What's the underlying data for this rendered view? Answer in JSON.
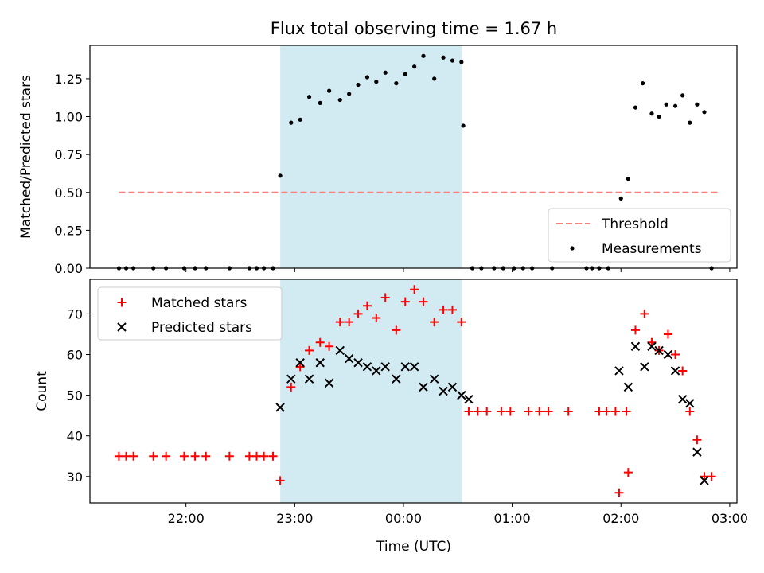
{
  "title": "Flux total observing time = 1.67 h",
  "colors": {
    "shade": "#add8e6",
    "threshold": "#ff7f7f",
    "measurements": "#000000",
    "matched": "#ff0000",
    "predicted": "#000000"
  },
  "x_ticks": [
    {
      "t": 0,
      "label": "22:00"
    },
    {
      "t": 60,
      "label": "23:00"
    },
    {
      "t": 120,
      "label": "00:00"
    },
    {
      "t": 180,
      "label": "01:00"
    },
    {
      "t": 240,
      "label": "02:00"
    },
    {
      "t": 300,
      "label": "03:00"
    }
  ],
  "xlabel": "Time (UTC)",
  "chart_data": [
    {
      "type": "scatter",
      "ylabel": "Matched/Predicted stars",
      "xlim": [
        -53,
        304
      ],
      "ylim": [
        0,
        1.47
      ],
      "yticks": [
        "0.00",
        "0.25",
        "0.50",
        "0.75",
        "1.00",
        "1.25"
      ],
      "shaded_span": [
        52,
        152
      ],
      "legend_position": "lower right",
      "series": [
        {
          "name": "Threshold",
          "style": "dashed-line",
          "points": [
            [
              -37,
              0.5
            ],
            [
              295,
              0.5
            ]
          ]
        },
        {
          "name": "Measurements",
          "style": "dot",
          "points": [
            [
              -37,
              0
            ],
            [
              -33,
              0
            ],
            [
              -29,
              0
            ],
            [
              -18,
              0
            ],
            [
              -11,
              0
            ],
            [
              -1,
              0
            ],
            [
              5,
              0
            ],
            [
              11,
              0
            ],
            [
              24,
              0
            ],
            [
              35,
              0
            ],
            [
              39,
              0
            ],
            [
              43,
              0
            ],
            [
              48,
              0
            ],
            [
              52,
              0.61
            ],
            [
              58,
              0.96
            ],
            [
              63,
              0.98
            ],
            [
              68,
              1.13
            ],
            [
              74,
              1.09
            ],
            [
              79,
              1.17
            ],
            [
              85,
              1.11
            ],
            [
              90,
              1.15
            ],
            [
              95,
              1.21
            ],
            [
              100,
              1.26
            ],
            [
              105,
              1.23
            ],
            [
              110,
              1.29
            ],
            [
              116,
              1.22
            ],
            [
              121,
              1.28
            ],
            [
              126,
              1.33
            ],
            [
              131,
              1.4
            ],
            [
              137,
              1.25
            ],
            [
              142,
              1.39
            ],
            [
              147,
              1.37
            ],
            [
              152,
              1.36
            ],
            [
              153,
              0.94
            ],
            [
              158,
              0
            ],
            [
              163,
              0
            ],
            [
              170,
              0
            ],
            [
              175,
              0
            ],
            [
              181,
              0
            ],
            [
              186,
              0
            ],
            [
              191,
              0
            ],
            [
              202,
              0
            ],
            [
              221,
              0
            ],
            [
              224,
              0
            ],
            [
              228,
              0
            ],
            [
              233,
              0
            ],
            [
              240,
              0.46
            ],
            [
              244,
              0.59
            ],
            [
              248,
              1.06
            ],
            [
              252,
              1.22
            ],
            [
              257,
              1.02
            ],
            [
              261,
              1.0
            ],
            [
              265,
              1.08
            ],
            [
              270,
              1.07
            ],
            [
              274,
              1.14
            ],
            [
              278,
              0.96
            ],
            [
              282,
              1.08
            ],
            [
              286,
              1.03
            ],
            [
              290,
              0
            ]
          ]
        }
      ]
    },
    {
      "type": "scatter",
      "ylabel": "Count",
      "xlim": [
        -53,
        304
      ],
      "ylim": [
        23.5,
        78.5
      ],
      "yticks": [
        "30",
        "40",
        "50",
        "60",
        "70"
      ],
      "shaded_span": [
        52,
        152
      ],
      "legend_position": "upper left",
      "series": [
        {
          "name": "Matched stars",
          "marker": "plus",
          "points": [
            [
              -37,
              35
            ],
            [
              -33,
              35
            ],
            [
              -29,
              35
            ],
            [
              -18,
              35
            ],
            [
              -11,
              35
            ],
            [
              -1,
              35
            ],
            [
              5,
              35
            ],
            [
              11,
              35
            ],
            [
              24,
              35
            ],
            [
              35,
              35
            ],
            [
              39,
              35
            ],
            [
              43,
              35
            ],
            [
              48,
              35
            ],
            [
              52,
              29
            ],
            [
              58,
              52
            ],
            [
              63,
              57
            ],
            [
              68,
              61
            ],
            [
              74,
              63
            ],
            [
              79,
              62
            ],
            [
              85,
              68
            ],
            [
              90,
              68
            ],
            [
              95,
              70
            ],
            [
              100,
              72
            ],
            [
              105,
              69
            ],
            [
              110,
              74
            ],
            [
              116,
              66
            ],
            [
              121,
              73
            ],
            [
              126,
              76
            ],
            [
              131,
              73
            ],
            [
              137,
              68
            ],
            [
              142,
              71
            ],
            [
              147,
              71
            ],
            [
              152,
              68
            ],
            [
              156,
              46
            ],
            [
              161,
              46
            ],
            [
              166,
              46
            ],
            [
              174,
              46
            ],
            [
              179,
              46
            ],
            [
              189,
              46
            ],
            [
              195,
              46
            ],
            [
              200,
              46
            ],
            [
              211,
              46
            ],
            [
              228,
              46
            ],
            [
              232,
              46
            ],
            [
              237,
              46
            ],
            [
              243,
              46
            ],
            [
              239,
              26
            ],
            [
              244,
              31
            ],
            [
              248,
              66
            ],
            [
              253,
              70
            ],
            [
              257,
              63
            ],
            [
              261,
              61
            ],
            [
              266,
              65
            ],
            [
              270,
              60
            ],
            [
              274,
              56
            ],
            [
              278,
              46
            ],
            [
              282,
              39
            ],
            [
              286,
              30
            ],
            [
              290,
              30
            ]
          ]
        },
        {
          "name": "Predicted stars",
          "marker": "x",
          "points": [
            [
              52,
              47
            ],
            [
              58,
              54
            ],
            [
              63,
              58
            ],
            [
              68,
              54
            ],
            [
              74,
              58
            ],
            [
              79,
              53
            ],
            [
              85,
              61
            ],
            [
              90,
              59
            ],
            [
              95,
              58
            ],
            [
              100,
              57
            ],
            [
              105,
              56
            ],
            [
              110,
              57
            ],
            [
              116,
              54
            ],
            [
              121,
              57
            ],
            [
              126,
              57
            ],
            [
              131,
              52
            ],
            [
              137,
              54
            ],
            [
              142,
              51
            ],
            [
              147,
              52
            ],
            [
              152,
              50
            ],
            [
              156,
              49
            ],
            [
              239,
              56
            ],
            [
              244,
              52
            ],
            [
              248,
              62
            ],
            [
              253,
              57
            ],
            [
              257,
              62
            ],
            [
              261,
              61
            ],
            [
              266,
              60
            ],
            [
              270,
              56
            ],
            [
              274,
              49
            ],
            [
              278,
              48
            ],
            [
              282,
              36
            ],
            [
              286,
              29
            ]
          ]
        }
      ]
    }
  ]
}
